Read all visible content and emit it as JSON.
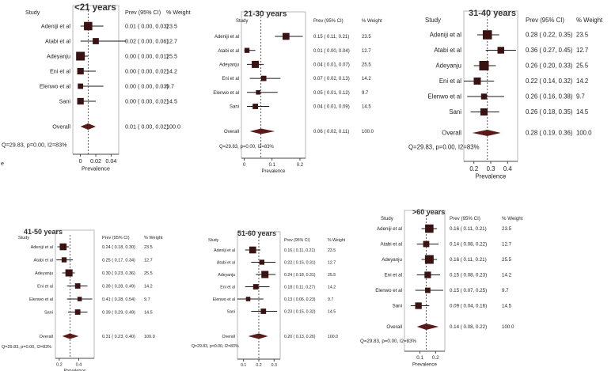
{
  "chart_data": [
    {
      "type": "forest",
      "title": "<21 years",
      "headers": {
        "study": "Study",
        "ci": "Prev (95% CI)",
        "weight": "% Weight"
      },
      "xlabel": "Prevalence",
      "xlim": [
        -0.01,
        0.05
      ],
      "xticks": [
        0,
        0.02,
        0.04
      ],
      "xticklabels": [
        "0",
        "0.02",
        "0.04"
      ],
      "ref_line": 0.01,
      "studies": [
        {
          "name": "Adeniji et al",
          "est": 0.01,
          "lo": 0.0,
          "hi": 0.03,
          "ci_text": "0.01  ( 0.00,  0.03)",
          "weight": "23.5"
        },
        {
          "name": "Atabi et al",
          "est": 0.02,
          "lo": 0.0,
          "hi": 0.06,
          "ci_text": "0.02  ( 0.00,  0.06)",
          "weight": "12.7"
        },
        {
          "name": "Adeyanju",
          "est": 0.0,
          "lo": 0.0,
          "hi": 0.01,
          "ci_text": "0.00  ( 0.00,  0.01)",
          "weight": "25.5"
        },
        {
          "name": "Eni et al",
          "est": 0.0,
          "lo": 0.0,
          "hi": 0.02,
          "ci_text": "0.00  ( 0.00,  0.02)",
          "weight": "14.2"
        },
        {
          "name": "Elenwo et al",
          "est": 0.0,
          "lo": 0.0,
          "hi": 0.03,
          "ci_text": "0.00  ( 0.00,  0.03)",
          "weight": "9.7"
        },
        {
          "name": "Sani",
          "est": 0.0,
          "lo": 0.0,
          "hi": 0.02,
          "ci_text": "0.00  ( 0.00,  0.02)",
          "weight": "14.5"
        }
      ],
      "overall": {
        "name": "Overall",
        "est": 0.01,
        "lo": 0.0,
        "hi": 0.02,
        "ci_text": "0.01  ( 0.00,  0.02)",
        "weight": "100.0"
      },
      "heterogeneity": "Q=29.83, p=0.00, I2=83%",
      "stray_text": "e"
    },
    {
      "type": "forest",
      "title": "21-30 years",
      "headers": {
        "study": "Study",
        "ci": "Prev (95% CI)",
        "weight": "% Weight"
      },
      "xlabel": "Prevalence",
      "xlim": [
        -0.01,
        0.22
      ],
      "xticks": [
        0,
        0.1,
        0.2
      ],
      "xticklabels": [
        "0",
        "0.1",
        "0.2"
      ],
      "ref_line": 0.06,
      "studies": [
        {
          "name": "Adeniji et al",
          "est": 0.15,
          "lo": 0.11,
          "hi": 0.21,
          "ci_text": "0.15  ( 0.11,  0.21)",
          "weight": "23.5"
        },
        {
          "name": "Atabi et al",
          "est": 0.01,
          "lo": 0.0,
          "hi": 0.04,
          "ci_text": "0.01  ( 0.00,  0.04)",
          "weight": "12.7"
        },
        {
          "name": "Adeyanju",
          "est": 0.04,
          "lo": 0.01,
          "hi": 0.07,
          "ci_text": "0.04  ( 0.01,  0.07)",
          "weight": "25.5"
        },
        {
          "name": "Eni et al",
          "est": 0.07,
          "lo": 0.02,
          "hi": 0.13,
          "ci_text": "0.07  ( 0.02,  0.13)",
          "weight": "14.2"
        },
        {
          "name": "Elenwo et al",
          "est": 0.05,
          "lo": 0.01,
          "hi": 0.12,
          "ci_text": "0.05  ( 0.01,  0.12)",
          "weight": "9.7"
        },
        {
          "name": "Sani",
          "est": 0.04,
          "lo": 0.01,
          "hi": 0.09,
          "ci_text": "0.04  ( 0.01,  0.09)",
          "weight": "14.5"
        }
      ],
      "overall": {
        "name": "Overall",
        "est": 0.06,
        "lo": 0.02,
        "hi": 0.11,
        "ci_text": "0.06  ( 0.02,  0.11)",
        "weight": "100.0"
      },
      "heterogeneity": "Q=29.83, p=0.00, I2=83%"
    },
    {
      "type": "forest",
      "title": "31-40 years",
      "headers": {
        "study": "Study",
        "ci": "Prev (95% CI)",
        "weight": "% Weight"
      },
      "xlabel": "Prevalence",
      "xlim": [
        0.14,
        0.46
      ],
      "xticks": [
        0.2,
        0.3,
        0.4
      ],
      "xticklabels": [
        "0.2",
        "0.3",
        "0.4"
      ],
      "ref_line": 0.28,
      "studies": [
        {
          "name": "Adeniji et al",
          "est": 0.28,
          "lo": 0.22,
          "hi": 0.35,
          "ci_text": "0.28  ( 0.22,  0.35)",
          "weight": "23.5"
        },
        {
          "name": "Atabi et al",
          "est": 0.36,
          "lo": 0.27,
          "hi": 0.45,
          "ci_text": "0.36  ( 0.27,  0.45)",
          "weight": "12.7"
        },
        {
          "name": "Adeyanju",
          "est": 0.26,
          "lo": 0.2,
          "hi": 0.33,
          "ci_text": "0.26  ( 0.20,  0.33)",
          "weight": "25.5"
        },
        {
          "name": "Eni et al",
          "est": 0.22,
          "lo": 0.14,
          "hi": 0.32,
          "ci_text": "0.22  ( 0.14,  0.32)",
          "weight": "14.2"
        },
        {
          "name": "Elenwo et al",
          "est": 0.26,
          "lo": 0.16,
          "hi": 0.38,
          "ci_text": "0.26  ( 0.16,  0.38)",
          "weight": "9.7"
        },
        {
          "name": "Sani",
          "est": 0.26,
          "lo": 0.18,
          "hi": 0.35,
          "ci_text": "0.26  ( 0.18,  0.35)",
          "weight": "14.5"
        }
      ],
      "overall": {
        "name": "Overall",
        "est": 0.28,
        "lo": 0.19,
        "hi": 0.36,
        "ci_text": "0.28  ( 0.19,  0.36)",
        "weight": "100.0"
      },
      "heterogeneity": "Q=29.83, p=0.00, I2=83%"
    },
    {
      "type": "forest",
      "title": "41-50 years",
      "headers": {
        "study": "Study",
        "ci": "Prev (95% CI)",
        "weight": "% Weight"
      },
      "xlabel": "Prevalence",
      "xlim": [
        0.16,
        0.56
      ],
      "xticks": [
        0.2,
        0.4
      ],
      "xticklabels": [
        "0.2",
        "0.4"
      ],
      "ref_line": 0.31,
      "studies": [
        {
          "name": "Adeniji et al",
          "est": 0.24,
          "lo": 0.18,
          "hi": 0.3,
          "ci_text": "0.24  ( 0.18,  0.30)",
          "weight": "23.5"
        },
        {
          "name": "Atabi et al",
          "est": 0.25,
          "lo": 0.17,
          "hi": 0.34,
          "ci_text": "0.25  ( 0.17,  0.34)",
          "weight": "12.7"
        },
        {
          "name": "Adeyanju",
          "est": 0.3,
          "lo": 0.23,
          "hi": 0.36,
          "ci_text": "0.30  ( 0.23,  0.36)",
          "weight": "25.5"
        },
        {
          "name": "Eni et al",
          "est": 0.39,
          "lo": 0.28,
          "hi": 0.49,
          "ci_text": "0.39  ( 0.28,  0.49)",
          "weight": "14.2"
        },
        {
          "name": "Elenwo et al",
          "est": 0.41,
          "lo": 0.28,
          "hi": 0.54,
          "ci_text": "0.41  ( 0.28,  0.54)",
          "weight": "9.7"
        },
        {
          "name": "Sani",
          "est": 0.39,
          "lo": 0.29,
          "hi": 0.49,
          "ci_text": "0.39  ( 0.29,  0.49)",
          "weight": "14.5"
        }
      ],
      "overall": {
        "name": "Overall",
        "est": 0.31,
        "lo": 0.23,
        "hi": 0.4,
        "ci_text": "0.31  ( 0.23,  0.40)",
        "weight": "100.0"
      },
      "heterogeneity": "Q=29.83, p=0.00, I2=83%"
    },
    {
      "type": "forest",
      "title": "51-60 years",
      "headers": {
        "study": "Study",
        "ci": "Prev (95% CI)",
        "weight": "% Weight"
      },
      "xlabel": "",
      "xlim": [
        0.06,
        0.34
      ],
      "xticks": [
        0.1,
        0.2,
        0.3
      ],
      "xticklabels": [
        "0.1",
        "0.2",
        "0.3"
      ],
      "ref_line": 0.2,
      "studies": [
        {
          "name": "Adeniji et al",
          "est": 0.16,
          "lo": 0.11,
          "hi": 0.21,
          "ci_text": "0.16  ( 0.11,  0.21)",
          "weight": "23.5"
        },
        {
          "name": "Atabi et al",
          "est": 0.22,
          "lo": 0.15,
          "hi": 0.31,
          "ci_text": "0.22  ( 0.15,  0.31)",
          "weight": "12.7"
        },
        {
          "name": "Adeyanju",
          "est": 0.24,
          "lo": 0.18,
          "hi": 0.31,
          "ci_text": "0.24  ( 0.18,  0.31)",
          "weight": "25.5"
        },
        {
          "name": "Eni et al",
          "est": 0.18,
          "lo": 0.11,
          "hi": 0.27,
          "ci_text": "0.18  ( 0.11,  0.27)",
          "weight": "14.2"
        },
        {
          "name": "Elenwo et al",
          "est": 0.13,
          "lo": 0.06,
          "hi": 0.23,
          "ci_text": "0.13  ( 0.06,  0.23)",
          "weight": "9.7"
        },
        {
          "name": "Sani",
          "est": 0.23,
          "lo": 0.15,
          "hi": 0.32,
          "ci_text": "0.23  ( 0.15,  0.32)",
          "weight": "14.5"
        }
      ],
      "overall": {
        "name": "Overall",
        "est": 0.2,
        "lo": 0.13,
        "hi": 0.26,
        "ci_text": "0.20  ( 0.13,  0.26)",
        "weight": "100.0"
      },
      "heterogeneity": "Q=29.83, p=0.00, I2=83%"
    },
    {
      "type": "forest",
      "title": ">60 years",
      "headers": {
        "study": "Study",
        "ci": "Prev (95% CI)",
        "weight": "% Weight"
      },
      "xlabel": "Prevalence",
      "xlim": [
        0.0,
        0.26
      ],
      "xticks": [
        0.1,
        0.2
      ],
      "xticklabels": [
        "0.1",
        "0.2"
      ],
      "ref_line": 0.14,
      "studies": [
        {
          "name": "Adeniji et al",
          "est": 0.16,
          "lo": 0.11,
          "hi": 0.21,
          "ci_text": "0.16  ( 0.11,  0.21)",
          "weight": "23.5"
        },
        {
          "name": "Atabi et al",
          "est": 0.14,
          "lo": 0.08,
          "hi": 0.22,
          "ci_text": "0.14  ( 0.08,  0.22)",
          "weight": "12.7"
        },
        {
          "name": "Adeyanju",
          "est": 0.16,
          "lo": 0.11,
          "hi": 0.21,
          "ci_text": "0.16  ( 0.11,  0.21)",
          "weight": "25.5"
        },
        {
          "name": "Eni et al",
          "est": 0.15,
          "lo": 0.08,
          "hi": 0.23,
          "ci_text": "0.15  ( 0.08,  0.23)",
          "weight": "14.2"
        },
        {
          "name": "Elenwo et al",
          "est": 0.15,
          "lo": 0.07,
          "hi": 0.25,
          "ci_text": "0.15  ( 0.07,  0.25)",
          "weight": "9.7"
        },
        {
          "name": "Sani",
          "est": 0.09,
          "lo": 0.04,
          "hi": 0.16,
          "ci_text": "0.09  ( 0.04,  0.16)",
          "weight": "14.5"
        }
      ],
      "overall": {
        "name": "Overall",
        "est": 0.14,
        "lo": 0.08,
        "hi": 0.22,
        "ci_text": "0.14  ( 0.08,  0.22)",
        "weight": "100.0"
      },
      "heterogeneity": "Q=29.83, p=0.00, I2=83%"
    }
  ],
  "colors": {
    "marker": "#3a1212",
    "diamond": "#5a1a1a",
    "ci_line": "#1a1a1a",
    "ref_line": "#333333",
    "frame": "#b8b8b8"
  }
}
